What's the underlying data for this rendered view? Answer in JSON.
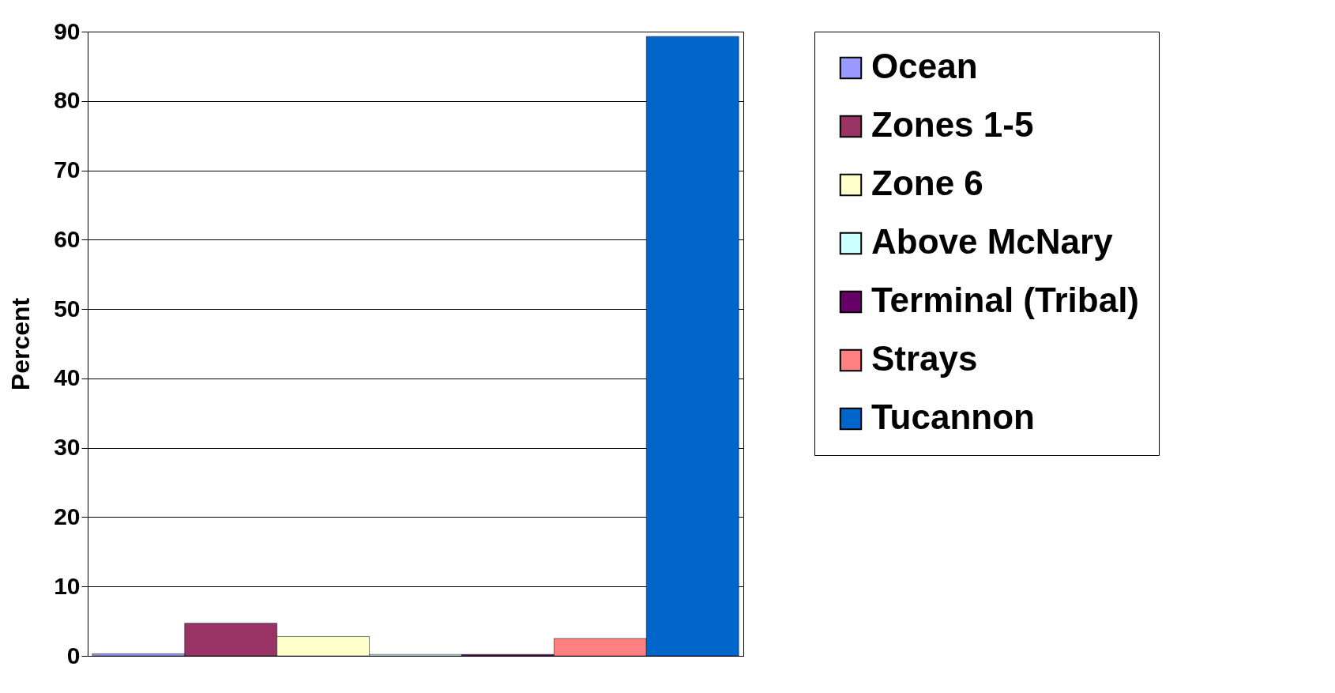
{
  "chart_data": {
    "type": "bar",
    "ylabel": "Percent",
    "categories": [
      null,
      null,
      null,
      null,
      null,
      null,
      null
    ],
    "series": [
      {
        "name": "Ocean",
        "color": "#9999ff",
        "values": [
          0.3,
          null,
          null,
          null,
          null,
          null,
          null
        ]
      },
      {
        "name": "Zones 1-5",
        "color": "#993366",
        "values": [
          null,
          4.7,
          null,
          null,
          null,
          null,
          null
        ]
      },
      {
        "name": "Zone 6",
        "color": "#ffffcc",
        "values": [
          null,
          null,
          2.8,
          null,
          null,
          null,
          null
        ]
      },
      {
        "name": "Above McNary",
        "color": "#ccffff",
        "values": [
          null,
          null,
          null,
          0.2,
          null,
          null,
          null
        ]
      },
      {
        "name": "Terminal (Tribal)",
        "color": "#660066",
        "values": [
          null,
          null,
          null,
          null,
          0.2,
          null,
          null
        ]
      },
      {
        "name": "Strays",
        "color": "#ff8080",
        "values": [
          null,
          null,
          null,
          null,
          null,
          2.5,
          null
        ]
      },
      {
        "name": "Tucannon",
        "color": "#0066cc",
        "values": [
          null,
          null,
          null,
          null,
          null,
          null,
          89.3
        ]
      }
    ],
    "ylim": [
      0,
      90
    ],
    "yticks": [
      0,
      10,
      20,
      30,
      40,
      50,
      60,
      70,
      80,
      90
    ],
    "grid": "y",
    "legend": "right",
    "tick_labels": "y"
  }
}
